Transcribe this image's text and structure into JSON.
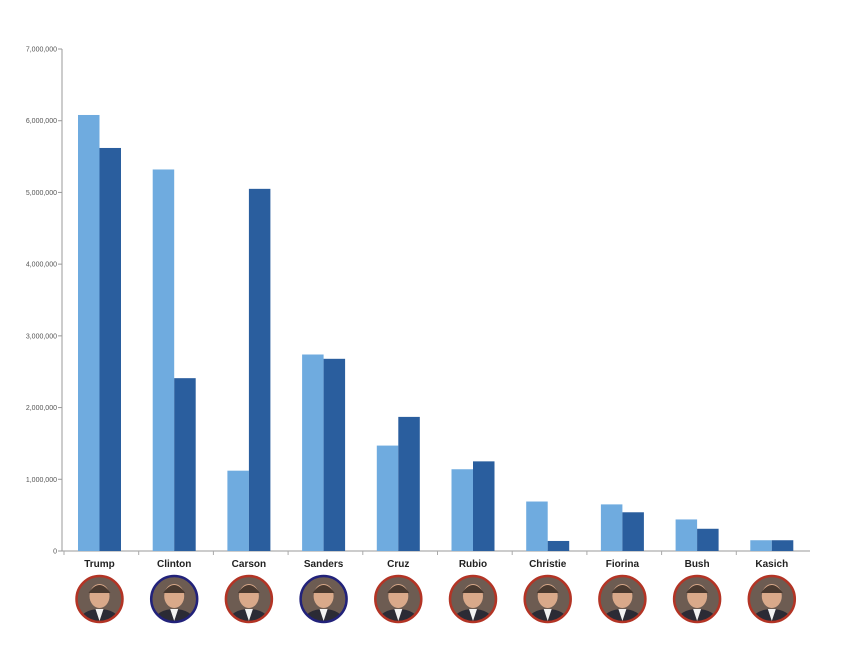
{
  "chart_data": {
    "type": "bar",
    "title": "",
    "xlabel": "",
    "ylabel": "",
    "ylim": [
      0,
      7000000
    ],
    "yticks": [
      0,
      1000000,
      2000000,
      3000000,
      4000000,
      5000000,
      6000000,
      7000000
    ],
    "ytick_labels": [
      "0",
      "1,000,000",
      "2,000,000",
      "3,000,000",
      "4,000,000",
      "5,000,000",
      "6,000,000",
      "7,000,000"
    ],
    "grid": false,
    "legend": "none",
    "categories": [
      "Trump",
      "Clinton",
      "Carson",
      "Sanders",
      "Cruz",
      "Rubio",
      "Christie",
      "Fiorina",
      "Bush",
      "Kasich"
    ],
    "series": [
      {
        "color": "#6fabdf",
        "values": [
          6080000,
          5320000,
          1120000,
          2740000,
          1470000,
          1140000,
          690000,
          650000,
          440000,
          150000
        ]
      },
      {
        "color": "#2a5e9e",
        "values": [
          5620000,
          2410000,
          5050000,
          2680000,
          1870000,
          1250000,
          140000,
          540000,
          310000,
          150000
        ]
      }
    ],
    "avatar_borders": [
      "#b33425",
      "#22227a",
      "#b33425",
      "#22227a",
      "#b33425",
      "#b33425",
      "#b33425",
      "#b33425",
      "#b33425",
      "#b33425"
    ]
  }
}
